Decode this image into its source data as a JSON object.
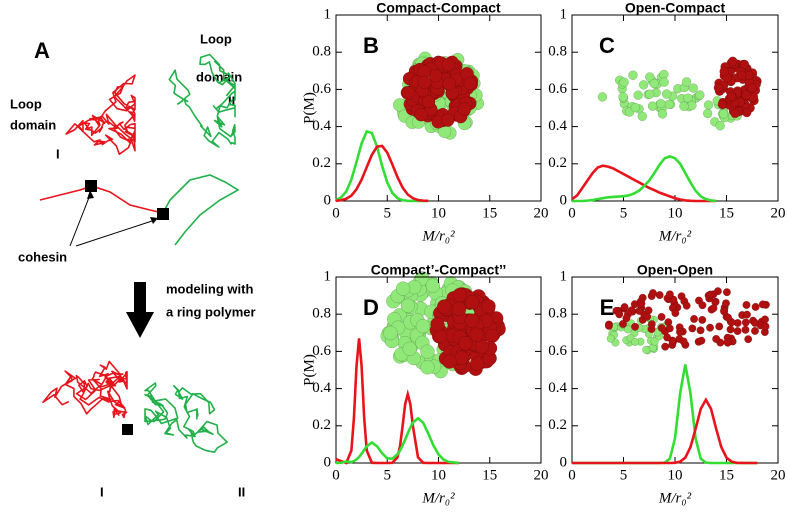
{
  "diagram": {
    "panel_label": "A",
    "loop_left": [
      "Loop",
      "domain"
    ],
    "loop_right": [
      "Loop",
      "domain"
    ],
    "roman_top": [
      "I",
      "II"
    ],
    "cohesin": "cohesin",
    "arrow_text": [
      "modeling with",
      "a ring polymer"
    ],
    "roman_bottom": [
      "I",
      "II"
    ]
  },
  "chart_data": [
    {
      "type": "line",
      "title": "Compact-Compact",
      "panel_label": "B",
      "ylabel": "P(M)",
      "xlabel": "M/r₀²",
      "x": [
        0,
        0.5,
        1,
        1.5,
        2,
        2.5,
        3,
        3.5,
        4,
        4.5,
        5,
        5.5,
        6,
        6.5,
        7,
        7.5,
        8,
        8.5,
        9
      ],
      "series": [
        {
          "color": "#33dd33",
          "values": [
            0.006,
            0.019,
            0.051,
            0.115,
            0.21,
            0.31,
            0.374,
            0.366,
            0.292,
            0.189,
            0.1,
            0.043,
            0.015,
            0.004,
            0.001,
            0,
            0,
            0,
            0
          ]
        },
        {
          "color": "#e8141c",
          "values": [
            0.001,
            0.004,
            0.012,
            0.029,
            0.063,
            0.115,
            0.182,
            0.248,
            0.292,
            0.296,
            0.26,
            0.196,
            0.128,
            0.072,
            0.035,
            0.015,
            0.005,
            0.002,
            0.001
          ]
        }
      ],
      "xlim": [
        0,
        20
      ],
      "ylim": [
        0,
        1
      ],
      "xticks": [
        0,
        5,
        10,
        15,
        20
      ],
      "yticks": [
        0,
        0.2,
        0.4,
        0.6,
        0.8,
        1
      ]
    },
    {
      "type": "line",
      "title": "Open-Compact",
      "panel_label": "C",
      "xlabel": "M/r₀²",
      "x": [
        0,
        0.5,
        1,
        1.5,
        2,
        2.5,
        3,
        3.5,
        4,
        4.5,
        5,
        5.5,
        6,
        6.5,
        7,
        7.5,
        8,
        8.5,
        9,
        9.5,
        10,
        10.5,
        11,
        11.5,
        12,
        12.5,
        13,
        13.5,
        14
      ],
      "series": [
        {
          "color": "#e8141c",
          "values": [
            0.01,
            0.03,
            0.07,
            0.11,
            0.15,
            0.18,
            0.19,
            0.185,
            0.175,
            0.16,
            0.145,
            0.13,
            0.115,
            0.1,
            0.085,
            0.07,
            0.058,
            0.045,
            0.035,
            0.025,
            0.015,
            0.008,
            0.003,
            0.001,
            0,
            0,
            0,
            0,
            0
          ]
        },
        {
          "color": "#33dd33",
          "values": [
            0,
            0,
            0,
            0.002,
            0.005,
            0.01,
            0.015,
            0.02,
            0.022,
            0.024,
            0.026,
            0.03,
            0.04,
            0.055,
            0.08,
            0.11,
            0.15,
            0.195,
            0.23,
            0.24,
            0.23,
            0.2,
            0.15,
            0.1,
            0.055,
            0.025,
            0.01,
            0.003,
            0
          ]
        }
      ],
      "xlim": [
        0,
        20
      ],
      "ylim": [
        0,
        1
      ],
      "xticks": [
        0,
        5,
        10,
        15,
        20
      ],
      "yticks": [
        0,
        0.2,
        0.4,
        0.6,
        0.8,
        1
      ]
    },
    {
      "type": "line",
      "title": "Compact’-Compact’’",
      "panel_label": "D",
      "ylabel": "P(M)",
      "xlabel": "M/r₀²",
      "x": [
        0,
        0.5,
        1,
        1.5,
        1.75,
        2,
        2.25,
        2.5,
        2.75,
        3,
        3.5,
        4,
        4.5,
        5,
        5.5,
        6,
        6.25,
        6.5,
        6.75,
        7,
        7.25,
        7.5,
        8,
        8.5,
        9,
        9.5,
        10,
        10.5,
        11,
        12
      ],
      "series": [
        {
          "color": "#e8141c",
          "values": [
            0.02,
            0.01,
            0,
            0.067,
            0.243,
            0.52,
            0.67,
            0.52,
            0.243,
            0.067,
            0.001,
            0,
            0,
            0,
            0.001,
            0.031,
            0.092,
            0.2,
            0.317,
            0.37,
            0.317,
            0.2,
            0.031,
            0.001,
            0,
            0,
            0,
            0,
            0,
            0
          ]
        },
        {
          "color": "#33dd33",
          "values": [
            0,
            0.001,
            0.008,
            0.005,
            0.01,
            0.019,
            0.032,
            0.05,
            0.071,
            0.09,
            0.11,
            0.09,
            0.052,
            0.025,
            0.023,
            0.047,
            0.067,
            0.095,
            0.126,
            0.159,
            0.19,
            0.217,
            0.24,
            0.217,
            0.159,
            0.095,
            0.046,
            0.018,
            0.006,
            0
          ]
        }
      ],
      "xlim": [
        0,
        20
      ],
      "ylim": [
        0,
        1
      ],
      "xticks": [
        0,
        5,
        10,
        15,
        20
      ],
      "yticks": [
        0,
        0.2,
        0.4,
        0.6,
        0.8,
        1
      ]
    },
    {
      "type": "line",
      "title": "Open-Open",
      "panel_label": "E",
      "xlabel": "M/r₀²",
      "x": [
        0,
        2,
        4,
        6,
        7,
        8,
        8.5,
        9,
        9.5,
        10,
        10.5,
        11,
        11.5,
        12,
        12.5,
        13,
        13.5,
        14,
        14.5,
        15,
        15.5,
        16,
        17,
        18
      ],
      "series": [
        {
          "color": "#33dd33",
          "values": [
            0,
            0,
            0,
            0,
            0,
            0,
            0,
            0.002,
            0.023,
            0.132,
            0.375,
            0.53,
            0.375,
            0.132,
            0.023,
            0.002,
            0,
            0,
            0,
            0,
            0,
            0,
            0,
            0
          ]
        },
        {
          "color": "#e8141c",
          "values": [
            0,
            0,
            0,
            0,
            0,
            0,
            0,
            0,
            0,
            0.001,
            0.007,
            0.029,
            0.085,
            0.183,
            0.291,
            0.34,
            0.291,
            0.183,
            0.085,
            0.029,
            0.007,
            0.001,
            0,
            0
          ]
        }
      ],
      "xlim": [
        0,
        20
      ],
      "ylim": [
        0,
        1
      ],
      "xticks": [
        0,
        5,
        10,
        15,
        20
      ],
      "yticks": [
        0,
        0.2,
        0.4,
        0.6,
        0.8,
        1
      ]
    }
  ]
}
